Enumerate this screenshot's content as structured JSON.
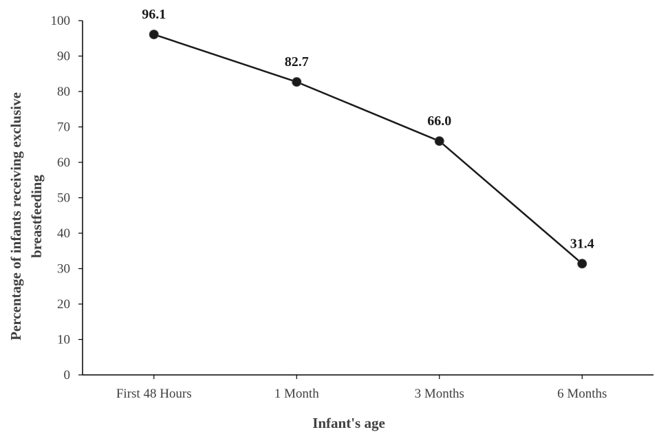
{
  "chart_data": {
    "type": "line",
    "title": "",
    "xlabel": "Infant's age",
    "ylabel_lines": [
      "Percentage of infants receiving exclusive",
      "breastfeeding"
    ],
    "categories": [
      "First 48 Hours",
      "1 Month",
      "3 Months",
      "6 Months"
    ],
    "values": [
      96.1,
      82.7,
      66.0,
      31.4
    ],
    "data_labels": [
      "96.1",
      "82.7",
      "66.0",
      "31.4"
    ],
    "ylim": [
      0,
      100
    ],
    "yticks": [
      0,
      10,
      20,
      30,
      40,
      50,
      60,
      70,
      80,
      90,
      100
    ],
    "grid": false,
    "legend": "none",
    "colors": {
      "line": "#1a1a1a",
      "marker": "#1a1a1a",
      "axis": "#000000"
    }
  }
}
